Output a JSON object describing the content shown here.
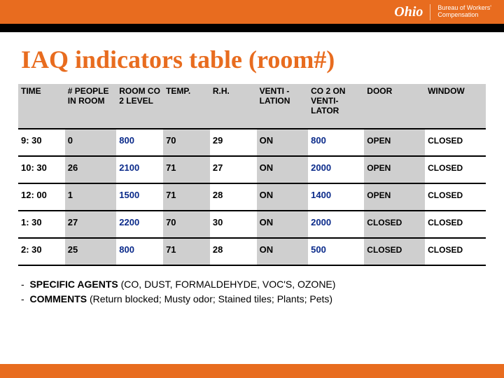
{
  "brand": {
    "ohio": "Ohio",
    "bwc_line1": "Bureau of Workers'",
    "bwc_line2": "Compensation"
  },
  "title": "IAQ indicators table (room#)",
  "colors": {
    "accent": "#e86c1f",
    "header_bg": "#cfcfcf",
    "co2_blue": "#0a2a8a",
    "border": "#000000",
    "background": "#ffffff"
  },
  "table": {
    "columns": [
      "TIME",
      "# PEOPLE IN ROOM",
      "ROOM CO 2 LEVEL",
      "TEMP.",
      "R.H.",
      "VENTI - LATION",
      "CO 2 ON VENTI- LATOR",
      "DOOR",
      "WINDOW"
    ],
    "col_widths_pct": [
      10,
      11,
      10,
      10,
      10,
      11,
      12,
      13,
      13
    ],
    "alt_cols": [
      false,
      true,
      false,
      true,
      false,
      true,
      false,
      true,
      false
    ],
    "rows": [
      {
        "time": "9: 30",
        "people": "0",
        "co2": "800",
        "temp": "70",
        "rh": "29",
        "vent": "ON",
        "co2v": "800",
        "door": "OPEN",
        "window": "CLOSED"
      },
      {
        "time": "10: 30",
        "people": "26",
        "co2": "2100",
        "temp": "71",
        "rh": "27",
        "vent": "ON",
        "co2v": "2000",
        "door": "OPEN",
        "window": "CLOSED"
      },
      {
        "time": "12: 00",
        "people": "1",
        "co2": "1500",
        "temp": "71",
        "rh": "28",
        "vent": "ON",
        "co2v": "1400",
        "door": "OPEN",
        "window": "CLOSED"
      },
      {
        "time": "1: 30",
        "people": "27",
        "co2": "2200",
        "temp": "70",
        "rh": "30",
        "vent": "ON",
        "co2v": "2000",
        "door": "CLOSED",
        "window": "CLOSED"
      },
      {
        "time": "2: 30",
        "people": "25",
        "co2": "800",
        "temp": "71",
        "rh": "28",
        "vent": "ON",
        "co2v": "500",
        "door": "CLOSED",
        "window": "CLOSED"
      }
    ]
  },
  "notes": {
    "line1_lead": "SPECIFIC AGENTS",
    "line1_rest": " (CO, DUST, FORMALDEHYDE, VOC'S, OZONE)",
    "line2_lead": "COMMENTS",
    "line2_rest": " (Return blocked; Musty odor; Stained tiles; Plants; Pets)"
  }
}
